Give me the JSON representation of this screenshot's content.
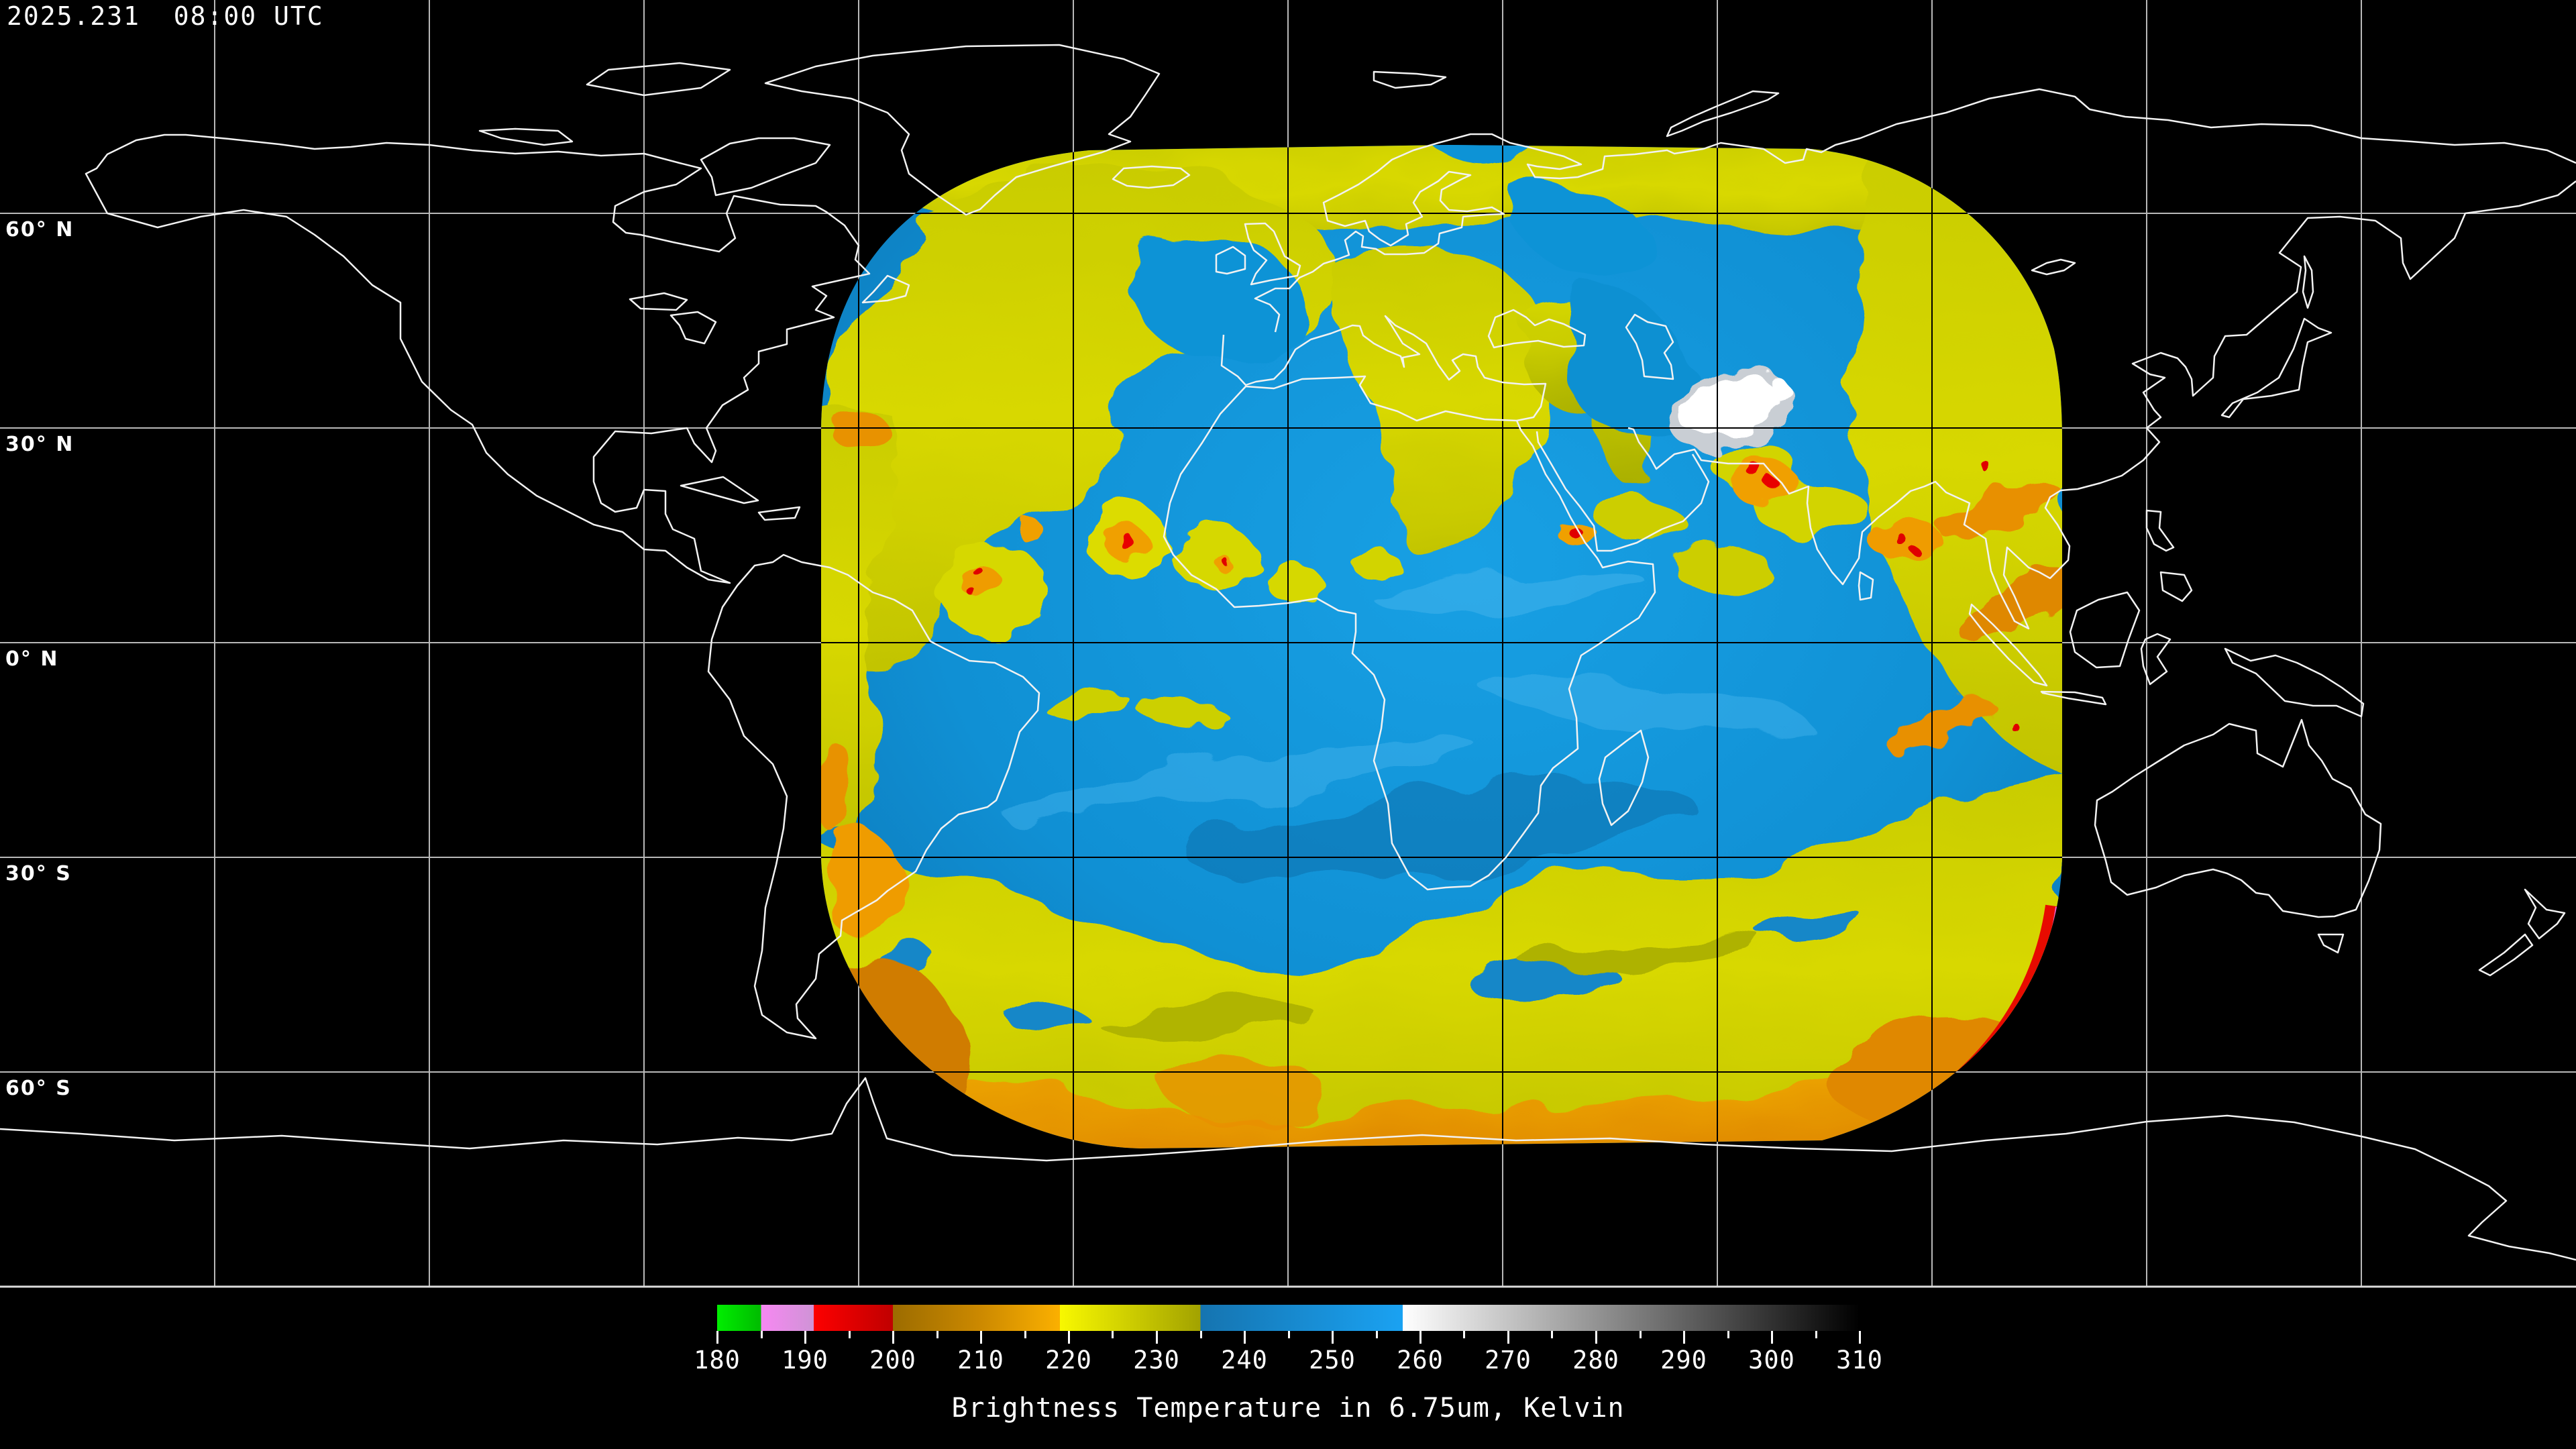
{
  "header": {
    "timestamp": "2025.231  08:00 UTC"
  },
  "map": {
    "lat_labels": [
      {
        "text": "60° N"
      },
      {
        "text": "30° N"
      },
      {
        "text": "0° N"
      },
      {
        "text": "30° S"
      },
      {
        "text": "60° S"
      }
    ],
    "grid": {
      "lat_line_step_deg": 30,
      "lon_line_step_deg": 30
    },
    "colors": {
      "background": "#000000",
      "graticule_outside": "#b8b8b8",
      "graticule_inside_swath": "#000000",
      "coastline_outside": "#f2f2f2",
      "coastline_inside_swath": "#000000",
      "map_border_bottom": "#dcdcdc"
    }
  },
  "colorbar": {
    "title": "Brightness Temperature in 6.75um, Kelvin",
    "min": 180,
    "max": 310,
    "major_tick_step": 10,
    "minor_tick_step": 5,
    "tick_labels": [
      180,
      190,
      200,
      210,
      220,
      230,
      240,
      250,
      260,
      270,
      280,
      290,
      300,
      310
    ],
    "minor_ticks": [
      185,
      195,
      205,
      215,
      225,
      235,
      245,
      255,
      265,
      275,
      285,
      295,
      305
    ],
    "gradient_stops": [
      {
        "v": 180,
        "c": "#00ee00"
      },
      {
        "v": 185,
        "c": "#00bb00"
      },
      {
        "v": 185,
        "c": "#f788f2"
      },
      {
        "v": 191,
        "c": "#cf93d6"
      },
      {
        "v": 191,
        "c": "#fd0000"
      },
      {
        "v": 200,
        "c": "#c00000"
      },
      {
        "v": 200,
        "c": "#9c6c00"
      },
      {
        "v": 210,
        "c": "#cc8900"
      },
      {
        "v": 219,
        "c": "#fbb000"
      },
      {
        "v": 219,
        "c": "#f8f800"
      },
      {
        "v": 235,
        "c": "#a2a200"
      },
      {
        "v": 235,
        "c": "#1574b0"
      },
      {
        "v": 258,
        "c": "#1aa2f2"
      },
      {
        "v": 258,
        "c": "#ffffff"
      },
      {
        "v": 310,
        "c": "#000000"
      }
    ],
    "swath_palette": {
      "warm_white_patch": "#ffffff",
      "moist_blue": "#1090d4",
      "high_cloud_yellow": "#d8d800",
      "cold_orange": "#ef9c00",
      "very_cold_red": "#e00000",
      "limb_magenta": "#f05fd5"
    }
  }
}
